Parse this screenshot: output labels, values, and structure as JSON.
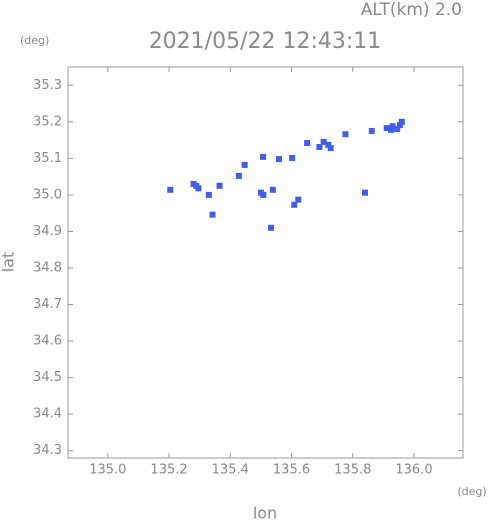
{
  "chart_data": {
    "type": "scatter",
    "title": "2021/05/22 12:43:11",
    "subtitle": "ALT(km) 2.0",
    "y_unit": "(deg)",
    "x_unit": "(deg)",
    "x_label": "lon",
    "y_label": "lat",
    "color": "#3f5ef0",
    "highlight_color": "#4a9af5",
    "x": [
      135.954,
      135.96,
      135.945,
      135.911,
      135.925,
      135.93,
      135.862,
      135.776,
      135.72,
      135.728,
      135.705,
      135.691,
      135.651,
      135.602,
      135.559,
      135.507,
      135.447,
      135.428,
      135.365,
      135.289,
      135.296,
      135.28,
      135.204,
      135.33,
      135.5,
      135.508,
      135.539,
      135.622,
      135.609,
      135.84,
      135.342,
      135.533
    ],
    "values": [
      35.191,
      35.2,
      35.18,
      35.183,
      35.178,
      35.188,
      35.175,
      35.166,
      35.137,
      35.128,
      35.145,
      35.131,
      35.142,
      35.101,
      35.098,
      35.104,
      35.082,
      35.052,
      35.025,
      35.025,
      35.018,
      35.03,
      35.014,
      35.0,
      35.006,
      35.0,
      35.014,
      34.987,
      34.973,
      35.006,
      34.946,
      34.91
    ],
    "xlim": [
      134.87,
      136.16
    ],
    "ylim": [
      34.28,
      35.35
    ],
    "xticks": [
      {
        "value": 135,
        "label": "135.0"
      },
      135.2,
      135.4,
      135.6,
      135.8,
      {
        "value": 136,
        "label": "136.0"
      }
    ],
    "yticks": [
      34.3,
      34.4,
      34.5,
      34.6,
      34.7,
      34.8,
      34.9,
      {
        "value": 35,
        "label": "35.0"
      },
      35.1,
      35.2,
      35.3
    ]
  }
}
